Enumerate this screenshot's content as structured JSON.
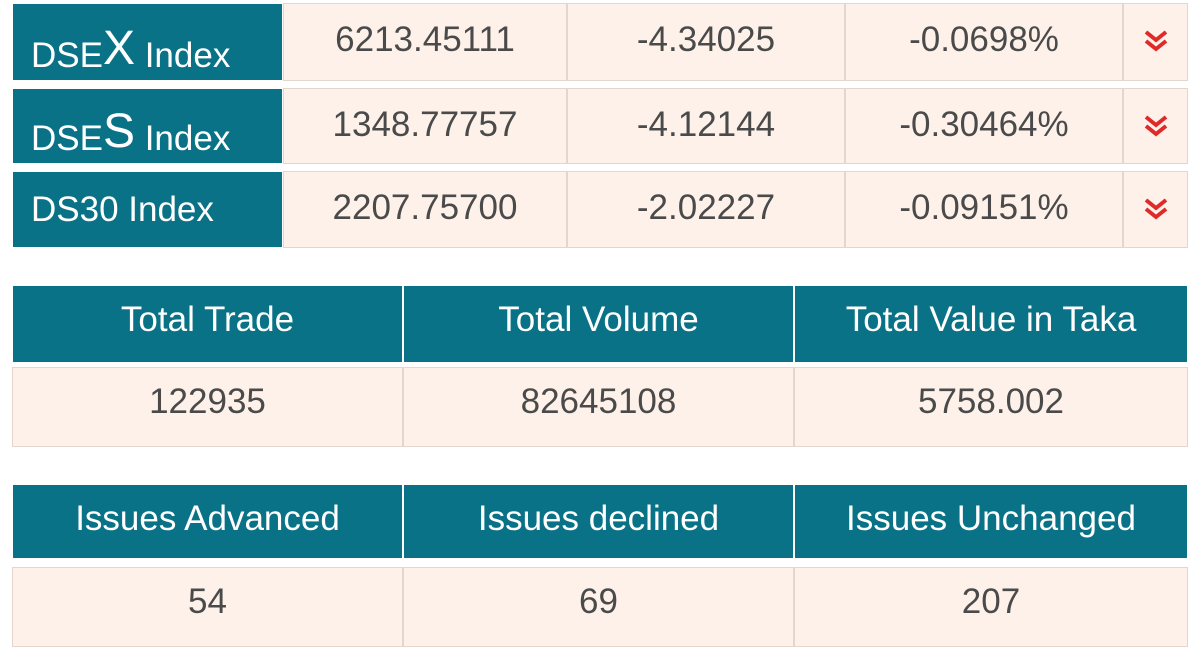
{
  "indices": [
    {
      "name": "DSEX Index",
      "value": "6213.45111",
      "change": "-4.34025",
      "percent": "-0.0698%"
    },
    {
      "name": "DSES Index",
      "value": "1348.77757",
      "change": "-4.12144",
      "percent": "-0.30464%"
    },
    {
      "name": "DS30 Index",
      "value": "2207.75700",
      "change": "-2.02227",
      "percent": "-0.09151%"
    }
  ],
  "summary": {
    "headers": [
      "Total Trade",
      "Total Volume",
      "Total Value in Taka"
    ],
    "values": [
      "122935",
      "82645108",
      "5758.002"
    ]
  },
  "issues": {
    "headers": [
      "Issues Advanced",
      "Issues declined",
      "Issues Unchanged"
    ],
    "values": [
      "54",
      "69",
      "207"
    ]
  }
}
